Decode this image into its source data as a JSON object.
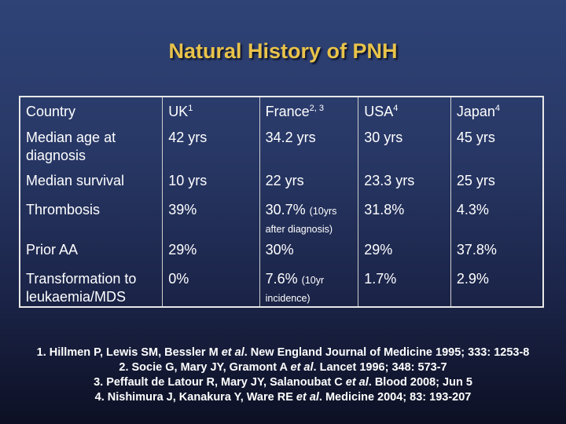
{
  "title": "Natural History of PNH",
  "table": {
    "header": {
      "label": "Country",
      "countries": [
        {
          "name": "UK",
          "sup": "1"
        },
        {
          "name": "France",
          "sup": "2, 3"
        },
        {
          "name": "USA",
          "sup": "4"
        },
        {
          "name": "Japan",
          "sup": "4"
        }
      ]
    },
    "rows": [
      {
        "label": "Median age at diagnosis",
        "values": [
          "42 yrs",
          "34.2 yrs",
          "30 yrs",
          "45 yrs"
        ]
      },
      {
        "label": "Median survival",
        "values": [
          "10 yrs",
          "22 yrs",
          "23.3 yrs",
          "25 yrs"
        ]
      },
      {
        "label": "Thrombosis",
        "values": [
          "39%",
          "30.7%",
          "31.8%",
          "4.3%"
        ],
        "notes": {
          "france_pre": "(10yrs",
          "france_post": "after diagnosis)"
        }
      },
      {
        "label": "Prior AA",
        "values": [
          "29%",
          "30%",
          "29%",
          "37.8%"
        ]
      },
      {
        "label": "Transformation to leukaemia/MDS",
        "values": [
          "0%",
          "7.6%",
          "1.7%",
          "2.9%"
        ],
        "notes": {
          "france_pre": "(10yr",
          "france_post": "incidence)"
        }
      }
    ]
  },
  "references": [
    {
      "num": "1.",
      "authors": "Hillmen P, Lewis SM, Bessler M",
      "etal": "et al",
      "source": ". New England Journal of Medicine 1995; 333: 1253-8"
    },
    {
      "num": "2.",
      "authors": "Socie G, Mary JY, Gramont A",
      "etal": "et al",
      "source": ". Lancet 1996; 348: 573-7"
    },
    {
      "num": "3.",
      "authors": "Peffault de Latour R, Mary JY, Salanoubat C",
      "etal": "et al",
      "source": ". Blood 2008; Jun 5"
    },
    {
      "num": "4.",
      "authors": "Nishimura J, Kanakura Y, Ware RE",
      "etal": "et al",
      "source": ". Medicine 2004; 83: 193-207"
    }
  ]
}
